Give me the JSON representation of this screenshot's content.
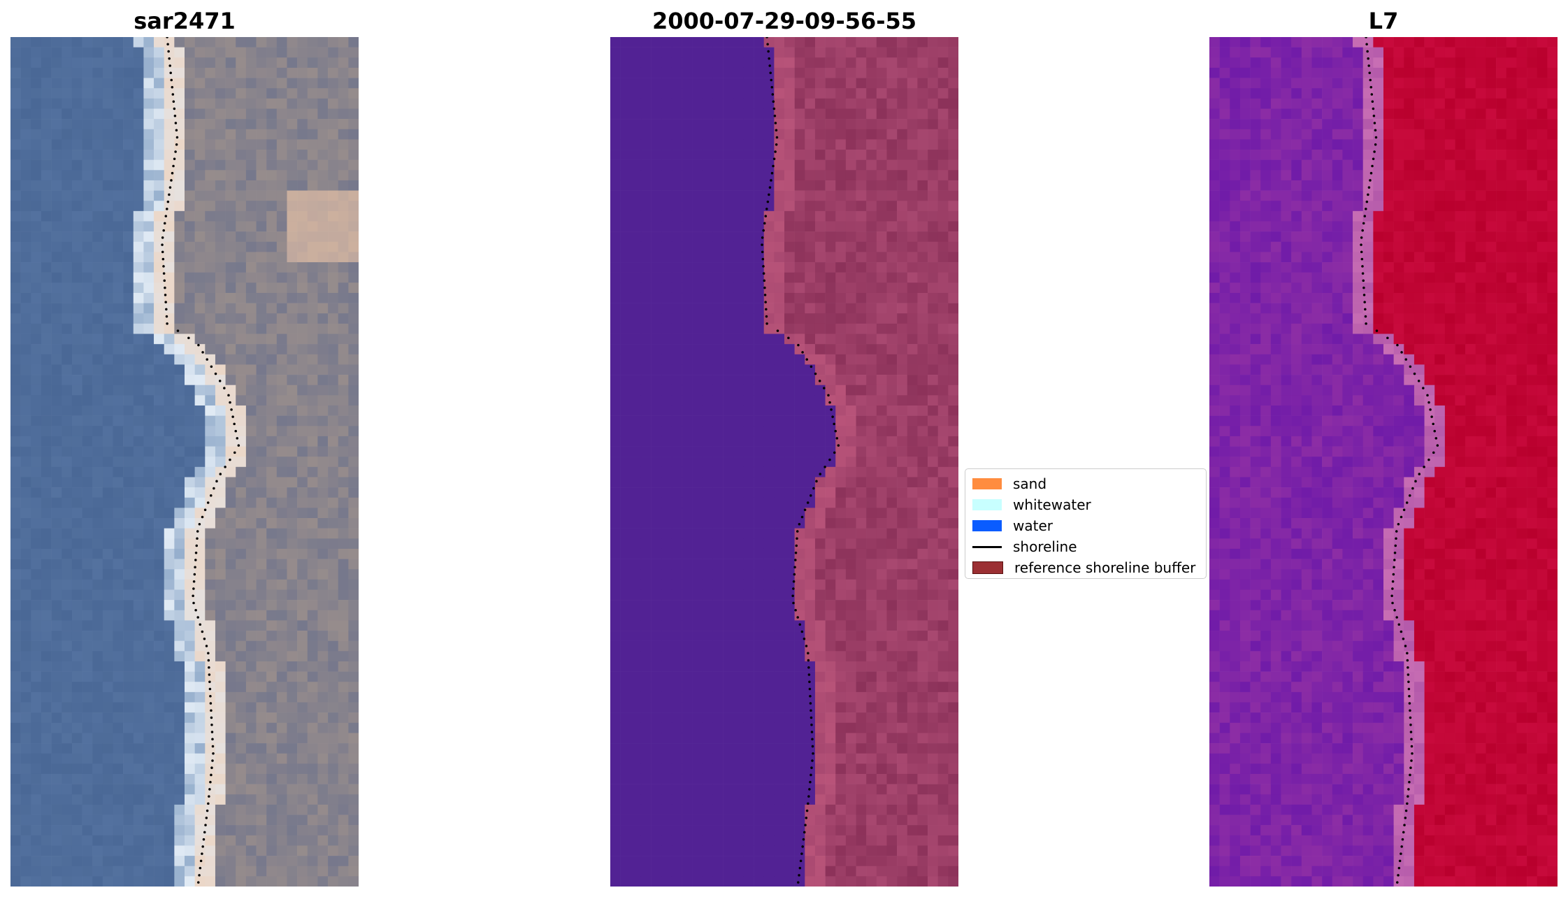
{
  "panels": [
    {
      "title": "sar2471"
    },
    {
      "title": "2000-07-29-09-56-55"
    },
    {
      "title": "L7"
    }
  ],
  "legend": {
    "items": [
      {
        "label": "sand",
        "color": "#ff8c3f",
        "kind": "patch"
      },
      {
        "label": "whitewater",
        "color": "#c8ffff",
        "kind": "patch"
      },
      {
        "label": "water",
        "color": "#0a5cff",
        "kind": "patch"
      },
      {
        "label": "shoreline",
        "color": "#000000",
        "kind": "line"
      },
      {
        "label": "reference shoreline buffer",
        "color": "#9b2f33",
        "kind": "patch"
      }
    ]
  },
  "colors": {
    "water_rgb": "#4a6a9a",
    "water_class": "#522294",
    "land_class": "#a84870",
    "mndwi_low": "#8a2ca6",
    "mndwi_high": "#c4003a"
  }
}
